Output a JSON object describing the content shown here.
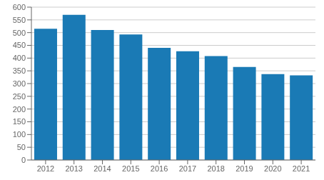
{
  "chart_data": {
    "type": "bar",
    "categories": [
      "2012",
      "2013",
      "2014",
      "2015",
      "2016",
      "2017",
      "2018",
      "2019",
      "2020",
      "2021"
    ],
    "values": [
      515,
      570,
      510,
      493,
      440,
      427,
      408,
      365,
      337,
      332
    ],
    "color": "#1a7ab5",
    "ylim": [
      0,
      600
    ],
    "yticks": [
      0,
      50,
      100,
      150,
      200,
      250,
      300,
      350,
      400,
      450,
      500,
      550,
      600
    ],
    "grid": true
  }
}
